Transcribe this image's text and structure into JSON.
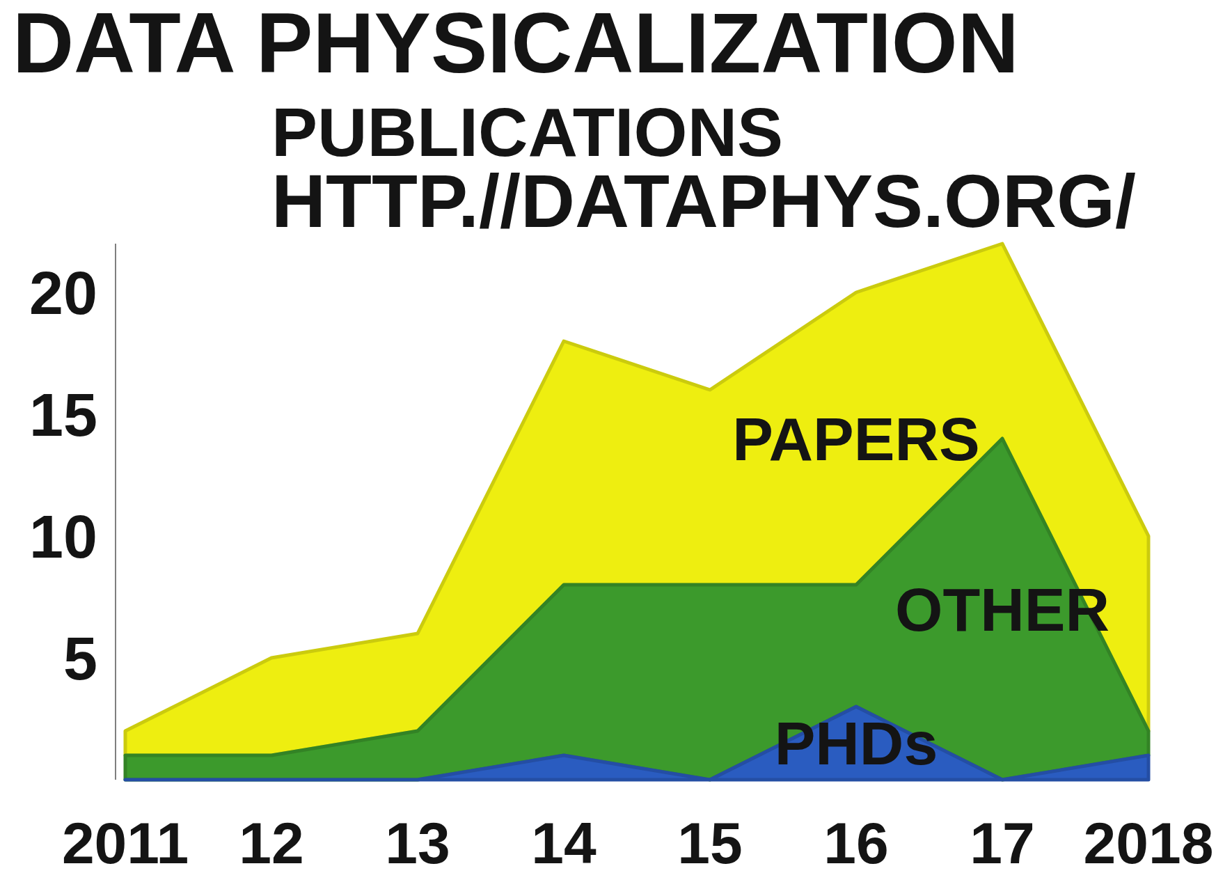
{
  "chart_data": {
    "type": "area",
    "title": "DATA PHYSICALIZATION",
    "subtitle": "PUBLICATIONS",
    "annotations": [
      "HTTP.//DATAPHYS.ORG/"
    ],
    "x": [
      2011,
      2012,
      2013,
      2014,
      2015,
      2016,
      2017,
      2018
    ],
    "stacked": true,
    "series": [
      {
        "name": "PHDs",
        "color": "#2a5cc0",
        "values": [
          0,
          0,
          0,
          1,
          0,
          3,
          0,
          1
        ]
      },
      {
        "name": "OTHER",
        "color": "#3c9a2c",
        "values": [
          1,
          1,
          2,
          7,
          8,
          5,
          14,
          1
        ]
      },
      {
        "name": "PAPERS",
        "color": "#eeee10",
        "values": [
          1,
          4,
          4,
          10,
          8,
          12,
          8,
          8
        ]
      }
    ],
    "xlim": [
      2011,
      2018
    ],
    "xticks": [
      {
        "value": 2011,
        "label": "2011"
      },
      {
        "value": 2012,
        "label": "12"
      },
      {
        "value": 2013,
        "label": "13"
      },
      {
        "value": 2014,
        "label": "14"
      },
      {
        "value": 2015,
        "label": "15"
      },
      {
        "value": 2016,
        "label": "16"
      },
      {
        "value": 2017,
        "label": "17"
      },
      {
        "value": 2018,
        "label": "2018"
      }
    ],
    "ylim": [
      0,
      22
    ],
    "yticks": [
      5,
      10,
      15,
      20
    ]
  }
}
